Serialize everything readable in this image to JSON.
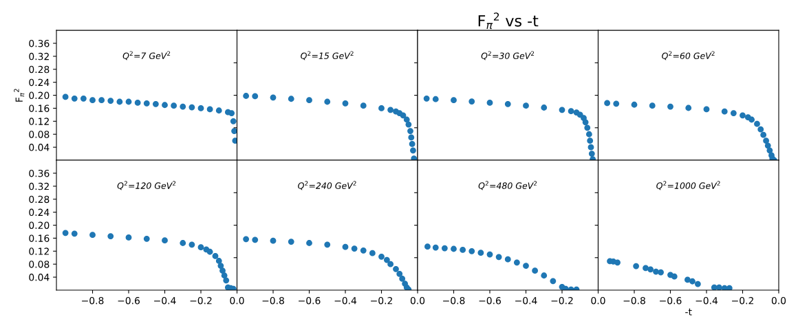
{
  "chart_data": [
    {
      "type": "scatter",
      "ylabel": "F$_{π}$$^{2}$",
      "annotations": [
        "Q$^{2}$=7 GeV$^{2}$"
      ],
      "color": "#1f77b4",
      "marker": "circle",
      "xlim": [
        -1.0,
        0.0
      ],
      "ylim": [
        0.0,
        0.4
      ],
      "yticks": [
        0.04,
        0.08,
        0.12,
        0.16,
        {
          "value": 0.2,
          "label": "0.20"
        },
        0.24,
        0.28,
        0.32,
        0.36
      ],
      "tick_labels": "y",
      "x": [
        -0.95,
        -0.9,
        -0.85,
        -0.8,
        -0.75,
        -0.7,
        -0.65,
        -0.6,
        -0.55,
        -0.5,
        -0.45,
        -0.4,
        -0.35,
        -0.3,
        -0.25,
        -0.2,
        -0.15,
        -0.1,
        -0.05,
        -0.03,
        -0.02,
        -0.015,
        -0.01
      ],
      "values": [
        0.195,
        0.19,
        0.19,
        0.185,
        0.185,
        0.183,
        0.18,
        0.18,
        0.177,
        0.175,
        0.173,
        0.17,
        0.168,
        0.165,
        0.163,
        0.16,
        0.157,
        0.153,
        0.148,
        0.145,
        0.12,
        0.09,
        0.06
      ]
    },
    {
      "type": "scatter",
      "annotations": [
        "Q$^{2}$=15 GeV$^{2}$"
      ],
      "color": "#1f77b4",
      "marker": "circle",
      "xlim": [
        -1.0,
        0.0
      ],
      "ylim": [
        0.0,
        0.4
      ],
      "yticks": [
        {
          "value": 0.1,
          "label": null
        },
        {
          "value": 0.2,
          "label": null
        },
        {
          "value": 0.3,
          "label": null
        }
      ],
      "tick_labels": false,
      "x": [
        -0.95,
        -0.9,
        -0.8,
        -0.7,
        -0.6,
        -0.5,
        -0.4,
        -0.3,
        -0.2,
        -0.15,
        -0.12,
        -0.1,
        -0.08,
        -0.06,
        -0.05,
        -0.04,
        -0.035,
        -0.03,
        -0.025,
        -0.02
      ],
      "values": [
        0.198,
        0.197,
        0.193,
        0.189,
        0.185,
        0.18,
        0.175,
        0.168,
        0.16,
        0.155,
        0.15,
        0.145,
        0.138,
        0.125,
        0.11,
        0.09,
        0.07,
        0.05,
        0.03,
        0.005
      ]
    },
    {
      "type": "scatter",
      "title": "F$_{π}$$^{2}$ vs -t",
      "annotations": [
        "Q$^{2}$=30 GeV$^{2}$"
      ],
      "color": "#1f77b4",
      "marker": "circle",
      "xlim": [
        -1.0,
        0.0
      ],
      "ylim": [
        0.0,
        0.4
      ],
      "yticks": [
        {
          "value": 0.1,
          "label": null
        },
        {
          "value": 0.2,
          "label": null
        },
        {
          "value": 0.3,
          "label": null
        }
      ],
      "tick_labels": false,
      "x": [
        -0.95,
        -0.9,
        -0.8,
        -0.7,
        -0.6,
        -0.5,
        -0.4,
        -0.3,
        -0.2,
        -0.15,
        -0.12,
        -0.1,
        -0.08,
        -0.07,
        -0.06,
        -0.05,
        -0.045,
        -0.04,
        -0.035,
        -0.03
      ],
      "values": [
        0.19,
        0.188,
        0.185,
        0.181,
        0.177,
        0.173,
        0.168,
        0.162,
        0.155,
        0.151,
        0.147,
        0.14,
        0.13,
        0.117,
        0.1,
        0.08,
        0.06,
        0.04,
        0.02,
        0.003
      ]
    },
    {
      "type": "scatter",
      "annotations": [
        "Q$^{2}$=60 GeV$^{2}$"
      ],
      "color": "#1f77b4",
      "marker": "circle",
      "xlim": [
        -1.0,
        0.0
      ],
      "ylim": [
        0.0,
        0.4
      ],
      "yticks": [
        {
          "value": 0.1,
          "label": null
        },
        {
          "value": 0.2,
          "label": null
        },
        {
          "value": 0.3,
          "label": null
        }
      ],
      "tick_labels": false,
      "x": [
        -0.95,
        -0.9,
        -0.8,
        -0.7,
        -0.6,
        -0.5,
        -0.4,
        -0.3,
        -0.25,
        -0.2,
        -0.17,
        -0.15,
        -0.12,
        -0.1,
        -0.085,
        -0.07,
        -0.06,
        -0.05,
        -0.04,
        -0.035,
        -0.025
      ],
      "values": [
        0.176,
        0.174,
        0.171,
        0.168,
        0.165,
        0.161,
        0.157,
        0.15,
        0.145,
        0.138,
        0.132,
        0.125,
        0.112,
        0.095,
        0.078,
        0.06,
        0.045,
        0.03,
        0.015,
        0.005,
        0.0
      ]
    },
    {
      "type": "scatter",
      "annotations": [
        "Q$^{2}$=120 GeV$^{2}$"
      ],
      "color": "#1f77b4",
      "marker": "circle",
      "xlim": [
        -1.0,
        0.0
      ],
      "ylim": [
        0.0,
        0.4
      ],
      "xticks": [
        {
          "value": -0.8,
          "label": "−0.8"
        },
        {
          "value": -0.6,
          "label": "−0.6"
        },
        {
          "value": -0.4,
          "label": "−0.4"
        },
        {
          "value": -0.2,
          "label": "−0.2"
        },
        {
          "value": 0,
          "label": "0.0"
        }
      ],
      "yticks": [
        0.04,
        0.08,
        0.12,
        0.16,
        {
          "value": 0.2,
          "label": "0.20"
        },
        0.24,
        0.28,
        0.32,
        0.36
      ],
      "x": [
        -0.95,
        -0.9,
        -0.8,
        -0.7,
        -0.6,
        -0.5,
        -0.4,
        -0.3,
        -0.25,
        -0.2,
        -0.17,
        -0.15,
        -0.12,
        -0.1,
        -0.09,
        -0.08,
        -0.07,
        -0.06,
        -0.05,
        -0.035,
        -0.02
      ],
      "values": [
        0.176,
        0.174,
        0.17,
        0.166,
        0.162,
        0.158,
        0.153,
        0.145,
        0.14,
        0.132,
        0.125,
        0.118,
        0.105,
        0.09,
        0.075,
        0.06,
        0.045,
        0.03,
        0.008,
        0.006,
        0.004
      ]
    },
    {
      "type": "scatter",
      "annotations": [
        "Q$^{2}$=240 GeV$^{2}$"
      ],
      "color": "#1f77b4",
      "marker": "circle",
      "xlim": [
        -1.0,
        0.0
      ],
      "ylim": [
        0.0,
        0.4
      ],
      "xticks": [
        {
          "value": -0.8,
          "label": "−0.8"
        },
        {
          "value": -0.6,
          "label": "−0.6"
        },
        {
          "value": -0.4,
          "label": "−0.4"
        },
        {
          "value": -0.2,
          "label": "−0.2"
        },
        {
          "value": 0,
          "label": "0.0"
        }
      ],
      "yticks": [
        {
          "value": 0.1,
          "label": null
        },
        {
          "value": 0.2,
          "label": null
        },
        {
          "value": 0.3,
          "label": null
        }
      ],
      "tick_labels": "x",
      "x": [
        -0.95,
        -0.9,
        -0.8,
        -0.7,
        -0.6,
        -0.5,
        -0.4,
        -0.35,
        -0.3,
        -0.25,
        -0.2,
        -0.17,
        -0.15,
        -0.12,
        -0.1,
        -0.085,
        -0.07,
        -0.06,
        -0.05
      ],
      "values": [
        0.157,
        0.155,
        0.152,
        0.149,
        0.145,
        0.14,
        0.133,
        0.128,
        0.122,
        0.114,
        0.103,
        0.093,
        0.08,
        0.065,
        0.05,
        0.035,
        0.02,
        0.008,
        0.002
      ]
    },
    {
      "type": "scatter",
      "annotations": [
        "Q$^{2}$=480 GeV$^{2}$"
      ],
      "color": "#1f77b4",
      "marker": "circle",
      "xlim": [
        -1.0,
        0.0
      ],
      "ylim": [
        0.0,
        0.4
      ],
      "xticks": [
        {
          "value": -0.8,
          "label": "−0.8"
        },
        {
          "value": -0.6,
          "label": "−0.6"
        },
        {
          "value": -0.4,
          "label": "−0.4"
        },
        {
          "value": -0.2,
          "label": "−0.2"
        },
        {
          "value": 0,
          "label": "0.0"
        }
      ],
      "yticks": [
        {
          "value": 0.1,
          "label": null
        },
        {
          "value": 0.2,
          "label": null
        },
        {
          "value": 0.3,
          "label": null
        }
      ],
      "tick_labels": "x",
      "x": [
        -0.945,
        -0.9,
        -0.85,
        -0.8,
        -0.75,
        -0.7,
        -0.65,
        -0.6,
        -0.55,
        -0.5,
        -0.45,
        -0.4,
        -0.35,
        -0.3,
        -0.25,
        -0.2,
        -0.18,
        -0.15,
        -0.12
      ],
      "values": [
        0.134,
        0.131,
        0.129,
        0.127,
        0.124,
        0.12,
        0.115,
        0.11,
        0.102,
        0.095,
        0.085,
        0.075,
        0.06,
        0.045,
        0.028,
        0.01,
        0.004,
        0.002,
        0.002
      ]
    },
    {
      "type": "scatter",
      "xlabel": "-t",
      "annotations": [
        "Q$^{2}$=1000 GeV$^{2}$"
      ],
      "color": "#1f77b4",
      "marker": "circle",
      "xlim": [
        -1.0,
        0.0
      ],
      "ylim": [
        0.0,
        0.4
      ],
      "xticks": [
        {
          "value": -0.8,
          "label": "−0.8"
        },
        {
          "value": -0.6,
          "label": "−0.6"
        },
        {
          "value": -0.4,
          "label": "−0.4"
        },
        {
          "value": -0.2,
          "label": "−0.2"
        },
        {
          "value": 0,
          "label": "0.0"
        }
      ],
      "yticks": [
        {
          "value": 0.1,
          "label": null
        },
        {
          "value": 0.2,
          "label": null
        },
        {
          "value": 0.3,
          "label": null
        }
      ],
      "tick_labels": "x",
      "x": [
        -0.935,
        -0.916,
        -0.893,
        -0.79,
        -0.737,
        -0.71,
        -0.68,
        -0.653,
        -0.6,
        -0.578,
        -0.505,
        -0.478,
        -0.448,
        -0.357,
        -0.33,
        -0.3,
        -0.273
      ],
      "values": [
        0.089,
        0.088,
        0.085,
        0.074,
        0.068,
        0.064,
        0.057,
        0.055,
        0.047,
        0.042,
        0.032,
        0.027,
        0.019,
        0.008,
        0.008,
        0.006,
        0.006
      ]
    }
  ]
}
